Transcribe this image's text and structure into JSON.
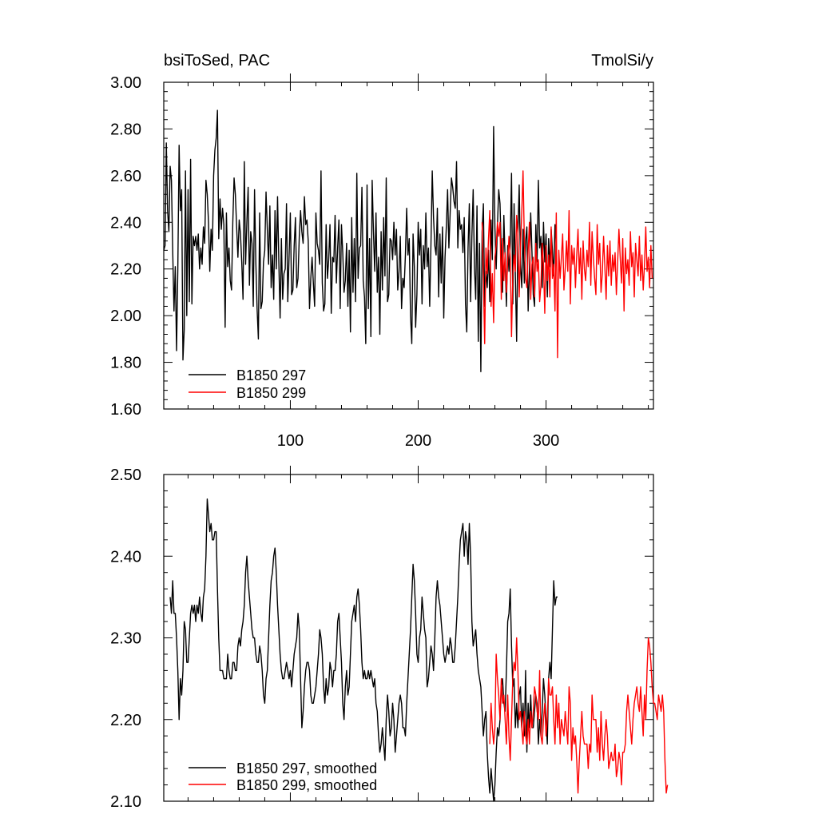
{
  "chart_data": [
    {
      "type": "line",
      "title_left": "bsiToSed, PAC",
      "title_right": "TmolSi/y",
      "xlim": [
        1,
        384
      ],
      "ylim": [
        1.6,
        3.0
      ],
      "x_ticks": [
        100,
        200,
        300
      ],
      "x_tick_labels": [
        "100",
        "200",
        "300"
      ],
      "y_ticks": [
        1.6,
        1.8,
        2.0,
        2.2,
        2.4,
        2.6,
        2.8,
        3.0
      ],
      "y_tick_labels": [
        "1.60",
        "1.80",
        "2.00",
        "2.20",
        "2.40",
        "2.60",
        "2.80",
        "3.00"
      ],
      "legend_position": "bottom-left",
      "series": [
        {
          "name": "B1850 297",
          "color": "#000000",
          "x_start": 1,
          "values": [
            2.28,
            2.3,
            2.74,
            2.45,
            2.36,
            2.64,
            2.58,
            2.28,
            2.02,
            2.21,
            1.85,
            2.2,
            2.73,
            2.45,
            2.54,
            1.81,
            1.94,
            2.62,
            2.0,
            2.54,
            2.06,
            2.67,
            2.05,
            2.34,
            2.3,
            2.34,
            2.28,
            2.35,
            2.2,
            2.29,
            2.22,
            2.38,
            2.31,
            2.58,
            2.52,
            2.4,
            2.19,
            2.37,
            2.28,
            2.6,
            2.71,
            2.76,
            2.88,
            2.33,
            2.5,
            2.37,
            2.46,
            2.39,
            1.95,
            2.44,
            2.21,
            2.29,
            2.15,
            2.11,
            2.4,
            2.59,
            2.52,
            2.38,
            2.25,
            2.41,
            2.35,
            2.23,
            2.07,
            2.66,
            2.22,
            2.4,
            2.55,
            2.13,
            2.36,
            2.31,
            2.04,
            2.54,
            2.23,
            2.03,
            1.9,
            2.44,
            2.03,
            2.06,
            2.23,
            2.28,
            2.53,
            2.37,
            2.22,
            2.47,
            2.12,
            2.26,
            2.07,
            2.45,
            2.2,
            2.51,
            2.23,
            1.99,
            2.33,
            2.07,
            2.18,
            2.2,
            2.48,
            2.06,
            2.25,
            2.44,
            2.09,
            2.11,
            2.3,
            2.42,
            2.12,
            2.16,
            2.34,
            2.45,
            2.36,
            2.31,
            2.51,
            2.39,
            2.41,
            2.32,
            2.03,
            2.16,
            2.25,
            2.14,
            2.04,
            2.44,
            2.31,
            2.28,
            2.22,
            2.62,
            2.14,
            2.02,
            2.05,
            2.39,
            2.16,
            2.24,
            2.39,
            2.01,
            2.25,
            2.23,
            2.43,
            2.14,
            2.29,
            2.41,
            2.03,
            2.39,
            2.27,
            2.1,
            2.15,
            2.31,
            2.04,
            2.28,
            1.93,
            2.42,
            2.1,
            2.33,
            2.06,
            2.61,
            2.16,
            2.29,
            2.3,
            2.55,
            2.15,
            2.08,
            1.88,
            2.56,
            2.03,
            2.33,
            1.91,
            2.58,
            2.36,
            2.19,
            2.44,
            2.1,
            2.25,
            1.92,
            2.36,
            2.11,
            2.42,
            2.17,
            2.59,
            2.06,
            2.09,
            2.33,
            2.32,
            2.24,
            2.4,
            2.26,
            2.37,
            2.11,
            2.19,
            2.34,
            2.03,
            2.16,
            2.12,
            2.26,
            2.46,
            2.26,
            2.33,
            2.0,
            1.88,
            2.35,
            2.21,
            1.95,
            2.09,
            2.4,
            2.26,
            2.37,
            2.05,
            2.3,
            2.2,
            2.44,
            2.21,
            2.29,
            2.04,
            2.31,
            2.62,
            2.42,
            2.3,
            2.26,
            2.46,
            2.08,
            2.35,
            2.14,
            2.38,
            1.99,
            2.25,
            2.38,
            2.54,
            2.29,
            2.44,
            2.59,
            2.55,
            2.49,
            2.46,
            2.66,
            2.29,
            2.45,
            2.37,
            2.39,
            2.27,
            2.42,
            2.05,
            1.93,
            2.29,
            2.48,
            2.06,
            2.34,
            2.54,
            2.21,
            2.07,
            2.47,
            1.89,
            2.31,
            1.76,
            2.36,
            2.48,
            2.04,
            2.19,
            2.12,
            2.28,
            2.06,
            2.41,
            2.24,
            2.81,
            2.38,
            2.2,
            2.39,
            2.54,
            2.48,
            2.27,
            2.1,
            2.43,
            2.24,
            2.04,
            2.3,
            2.19,
            2.31,
            2.61,
            2.05,
            2.48,
            2.17,
            1.89,
            2.35,
            2.56,
            2.22,
            2.12,
            2.37,
            2.14,
            2.32,
            2.38,
            2.02,
            2.19,
            2.44,
            2.27,
            2.09,
            2.04,
            2.39,
            2.23,
            2.58,
            2.29,
            2.34,
            2.12,
            2.4,
            2.23,
            2.35,
            2.08,
            2.33,
            2.21,
            2.37,
            2.28,
            2.17,
            2.39,
            2.3
          ]
        },
        {
          "name": "B1850 299",
          "color": "#ff0000",
          "x_start": 250,
          "values": [
            2.4,
            2.15,
            1.88,
            2.29,
            2.18,
            2.33,
            2.45,
            2.04,
            2.18,
            1.97,
            2.25,
            2.3,
            2.4,
            2.34,
            2.4,
            2.07,
            2.33,
            2.15,
            2.27,
            2.1,
            2.23,
            2.34,
            2.25,
            1.91,
            2.17,
            2.26,
            2.19,
            2.43,
            2.35,
            2.08,
            2.29,
            2.44,
            2.62,
            2.33,
            2.16,
            2.12,
            2.28,
            2.4,
            2.07,
            2.22,
            2.25,
            2.08,
            2.31,
            2.19,
            2.24,
            2.06,
            2.13,
            2.31,
            2.22,
            2.01,
            2.3,
            2.15,
            2.26,
            2.08,
            2.38,
            2.16,
            2.22,
            2.02,
            2.44,
            1.82,
            2.28,
            2.16,
            2.25,
            2.35,
            2.11,
            2.2,
            2.32,
            2.19,
            2.45,
            2.05,
            2.3,
            2.22,
            2.29,
            2.12,
            2.26,
            2.37,
            2.18,
            2.29,
            2.07,
            2.32,
            2.2,
            2.15,
            2.28,
            2.21,
            2.4,
            2.13,
            2.36,
            2.25,
            2.16,
            2.09,
            2.39,
            2.22,
            2.31,
            2.1,
            2.18,
            2.34,
            2.21,
            2.07,
            2.3,
            2.17,
            2.32,
            2.13,
            2.26,
            2.19,
            2.27,
            2.09,
            2.23,
            2.37,
            2.25,
            2.14,
            2.33,
            2.02,
            2.29,
            2.18,
            2.24,
            2.13,
            2.36,
            2.21,
            2.27,
            2.08,
            2.31,
            2.24,
            2.17,
            2.34,
            2.15,
            2.26,
            2.11,
            2.22,
            2.38,
            2.19,
            2.25,
            2.12,
            2.3,
            2.16
          ]
        }
      ]
    },
    {
      "type": "line",
      "xlim": [
        1,
        384
      ],
      "ylim": [
        2.1,
        2.5
      ],
      "y_ticks": [
        2.1,
        2.2,
        2.3,
        2.4,
        2.5
      ],
      "y_tick_labels": [
        "2.10",
        "2.20",
        "2.30",
        "2.40",
        "2.50"
      ],
      "legend_position": "bottom-left",
      "series": [
        {
          "name": "B1850 297, smoothed",
          "color": "#000000",
          "x_start": 6,
          "values": [
            2.35,
            2.33,
            2.37,
            2.33,
            2.33,
            2.3,
            2.26,
            2.2,
            2.25,
            2.23,
            2.26,
            2.32,
            2.31,
            2.27,
            2.27,
            2.3,
            2.33,
            2.34,
            2.33,
            2.34,
            2.32,
            2.34,
            2.33,
            2.35,
            2.33,
            2.32,
            2.35,
            2.36,
            2.4,
            2.47,
            2.45,
            2.43,
            2.44,
            2.42,
            2.42,
            2.43,
            2.43,
            2.36,
            2.3,
            2.26,
            2.26,
            2.26,
            2.25,
            2.25,
            2.25,
            2.28,
            2.26,
            2.25,
            2.25,
            2.27,
            2.27,
            2.26,
            2.26,
            2.29,
            2.3,
            2.29,
            2.31,
            2.32,
            2.34,
            2.38,
            2.4,
            2.37,
            2.35,
            2.33,
            2.31,
            2.3,
            2.3,
            2.28,
            2.27,
            2.27,
            2.29,
            2.28,
            2.26,
            2.23,
            2.22,
            2.25,
            2.26,
            2.3,
            2.34,
            2.37,
            2.38,
            2.4,
            2.41,
            2.38,
            2.34,
            2.31,
            2.28,
            2.26,
            2.25,
            2.25,
            2.26,
            2.27,
            2.26,
            2.25,
            2.26,
            2.24,
            2.26,
            2.28,
            2.29,
            2.3,
            2.33,
            2.31,
            2.25,
            2.19,
            2.21,
            2.24,
            2.26,
            2.27,
            2.27,
            2.26,
            2.23,
            2.22,
            2.22,
            2.23,
            2.24,
            2.26,
            2.28,
            2.31,
            2.3,
            2.28,
            2.24,
            2.22,
            2.25,
            2.23,
            2.24,
            2.27,
            2.26,
            2.24,
            2.26,
            2.26,
            2.28,
            2.32,
            2.33,
            2.3,
            2.27,
            2.22,
            2.2,
            2.24,
            2.26,
            2.23,
            2.24,
            2.28,
            2.32,
            2.33,
            2.34,
            2.32,
            2.35,
            2.36,
            2.34,
            2.31,
            2.27,
            2.25,
            2.26,
            2.25,
            2.25,
            2.26,
            2.25,
            2.26,
            2.25,
            2.24,
            2.25,
            2.22,
            2.21,
            2.18,
            2.16,
            2.17,
            2.19,
            2.17,
            2.15,
            2.2,
            2.23,
            2.21,
            2.18,
            2.19,
            2.22,
            2.2,
            2.16,
            2.18,
            2.2,
            2.22,
            2.23,
            2.22,
            2.19,
            2.19,
            2.18,
            2.22,
            2.25,
            2.28,
            2.31,
            2.35,
            2.39,
            2.37,
            2.33,
            2.28,
            2.27,
            2.3,
            2.31,
            2.35,
            2.33,
            2.31,
            2.3,
            2.24,
            2.25,
            2.27,
            2.29,
            2.28,
            2.26,
            2.3,
            2.35,
            2.37,
            2.35,
            2.34,
            2.32,
            2.3,
            2.28,
            2.27,
            2.28,
            2.29,
            2.28,
            2.3,
            2.29,
            2.27,
            2.27,
            2.29,
            2.32,
            2.35,
            2.39,
            2.42,
            2.43,
            2.44,
            2.4,
            2.43,
            2.42,
            2.39,
            2.44,
            2.4,
            2.32,
            2.29,
            2.3,
            2.31,
            2.28,
            2.26,
            2.25,
            2.24,
            2.21,
            2.18,
            2.2,
            2.21,
            2.16,
            2.13,
            2.11,
            2.14,
            2.12,
            2.1,
            2.12,
            2.16,
            2.19,
            2.18,
            2.2,
            2.24,
            2.25,
            2.22,
            2.21,
            2.26,
            2.32,
            2.33,
            2.36,
            2.29,
            2.24,
            2.25,
            2.19,
            2.22,
            2.19,
            2.23,
            2.24,
            2.19,
            2.22,
            2.18,
            2.26,
            2.16,
            2.22,
            2.19,
            2.23,
            2.19,
            2.19,
            2.21,
            2.23,
            2.22,
            2.17,
            2.2,
            2.18,
            2.21,
            2.25,
            2.23,
            2.2,
            2.17,
            2.25,
            2.27,
            2.25,
            2.31,
            2.37,
            2.34,
            2.35,
            2.35
          ]
        },
        {
          "name": "B1850 299, smoothed",
          "color": "#ff0000",
          "x_start": 256,
          "values": [
            2.17,
            2.22,
            2.19,
            2.17,
            2.19,
            2.28,
            2.25,
            2.23,
            2.2,
            2.25,
            2.22,
            2.23,
            2.2,
            2.17,
            2.23,
            2.18,
            2.15,
            2.2,
            2.25,
            2.27,
            2.26,
            2.3,
            2.26,
            2.2,
            2.21,
            2.19,
            2.17,
            2.21,
            2.18,
            2.17,
            2.2,
            2.17,
            2.21,
            2.19,
            2.21,
            2.24,
            2.23,
            2.21,
            2.2,
            2.26,
            2.18,
            2.17,
            2.2,
            2.22,
            2.18,
            2.2,
            2.25,
            2.23,
            2.23,
            2.24,
            2.2,
            2.17,
            2.23,
            2.19,
            2.22,
            2.17,
            2.2,
            2.19,
            2.18,
            2.21,
            2.19,
            2.17,
            2.24,
            2.22,
            2.15,
            2.19,
            2.17,
            2.18,
            2.15,
            2.11,
            2.15,
            2.18,
            2.21,
            2.18,
            2.17,
            2.17,
            2.17,
            2.14,
            2.17,
            2.16,
            2.23,
            2.2,
            2.2,
            2.2,
            2.16,
            2.19,
            2.15,
            2.21,
            2.17,
            2.15,
            2.18,
            2.2,
            2.18,
            2.14,
            2.15,
            2.16,
            2.15,
            2.15,
            2.17,
            2.13,
            2.14,
            2.16,
            2.15,
            2.12,
            2.16,
            2.16,
            2.17,
            2.21,
            2.23,
            2.21,
            2.19,
            2.17,
            2.2,
            2.22,
            2.23,
            2.24,
            2.22,
            2.21,
            2.24,
            2.21,
            2.18,
            2.23,
            2.2,
            2.26,
            2.3,
            2.29,
            2.27,
            2.24,
            2.22,
            2.22,
            2.21,
            2.2,
            2.23,
            2.22,
            2.21,
            2.23,
            2.21,
            2.15,
            2.11,
            2.12
          ]
        }
      ]
    }
  ]
}
